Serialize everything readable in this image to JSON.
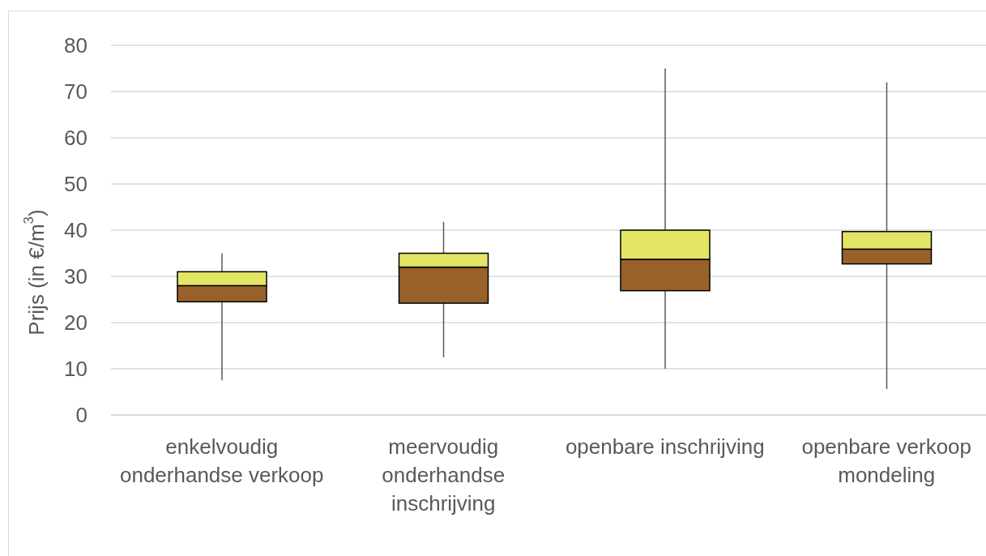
{
  "chart_data": {
    "type": "box",
    "ylabel": "Prijs (in €/m$^{3}$)",
    "categories": [
      "enkelvoudig onderhandse verkoop",
      "meervoudig onderhandse inschrijving",
      "openbare inschrijving",
      "openbare verkoop mondeling"
    ],
    "boxes": [
      {
        "low": 7.5,
        "q1": 24.5,
        "median": 28,
        "q3": 31,
        "high": 35
      },
      {
        "low": 12.5,
        "q1": 24.2,
        "median": 32,
        "q3": 35,
        "high": 41.8
      },
      {
        "low": 10,
        "q1": 26.9,
        "median": 33.7,
        "q3": 40,
        "high": 75
      },
      {
        "low": 5.6,
        "q1": 32.7,
        "median": 35.9,
        "q3": 39.7,
        "high": 72
      }
    ],
    "colors": [
      "#98612a",
      "#98612a",
      "#98612a",
      "#98612a"
    ],
    "color": "#e3e665",
    "ylim": [
      0,
      80
    ],
    "yticks": [
      0,
      10,
      20,
      30,
      40,
      50,
      60,
      70,
      80
    ],
    "grid": "y"
  }
}
